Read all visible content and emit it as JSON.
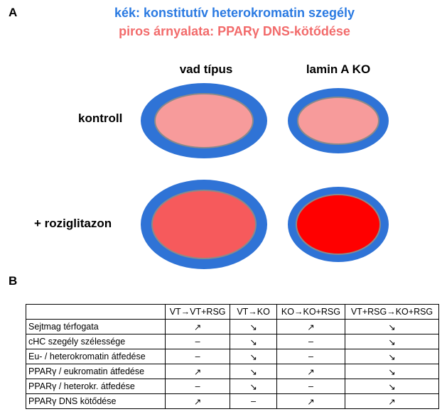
{
  "panel_a": {
    "label": "A",
    "legend": [
      "kék: konstitutív heterokromatin szegély",
      "piros árnyalata: PPARγ DNS-kötődése"
    ],
    "columns": [
      "vad típus",
      "lamin A KO"
    ],
    "rows": [
      "kontroll",
      "+ roziglitazon"
    ]
  },
  "panel_b": {
    "label": "B",
    "table": {
      "header": [
        "VT→VT+RSG",
        "VT→KO",
        "KO→KO+RSG",
        "VT+RSG→KO+RSG"
      ],
      "rows": [
        [
          "Sejtmag térfogata",
          "↗",
          "↘",
          "↗",
          "↘"
        ],
        [
          "cHC szegély szélessége",
          "–",
          "↘",
          "–",
          "↘"
        ],
        [
          "Eu- / heterokromatin átfedése",
          "–",
          "↘",
          "–",
          "↘"
        ],
        [
          "PPARγ / eukromatin átfedése",
          "↗",
          "↘",
          "↗",
          "↘"
        ],
        [
          "PPARγ / heterokr. átfedése",
          "–",
          "↘",
          "–",
          "↘"
        ],
        [
          "PPARγ DNS kötődése",
          "↗",
          "–",
          "↗",
          "↗"
        ]
      ]
    }
  }
}
